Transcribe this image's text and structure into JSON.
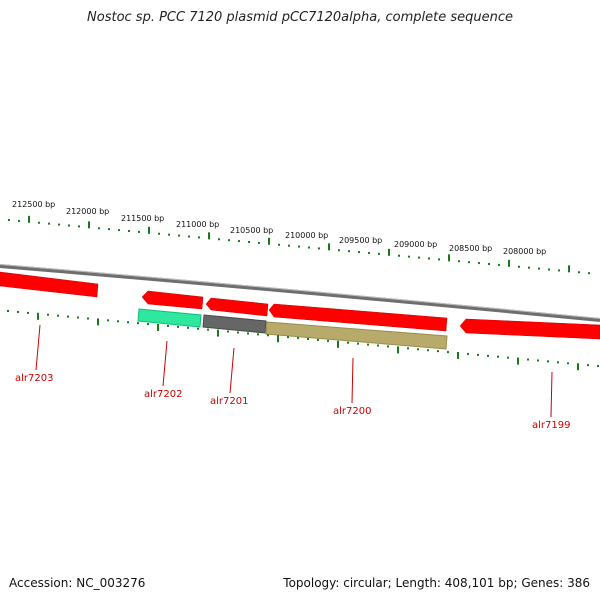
{
  "title": "Nostoc sp. PCC 7120 plasmid pCC7120alpha, complete sequence",
  "footer": {
    "accession": "Accession: NC_003276",
    "topology": "Topology: circular; Length: 408,101 bp; Genes: 386"
  },
  "scale_labels": [
    "212500 bp",
    "212000 bp",
    "211500 bp",
    "211000 bp",
    "210500 bp",
    "210000 bp",
    "209500 bp",
    "209000 bp",
    "208500 bp",
    "208000 bp"
  ],
  "genes": [
    {
      "name": "alr7203",
      "color": "#ff0000"
    },
    {
      "name": "alr7202",
      "color": "#ff0000"
    },
    {
      "name": "alr7201",
      "color": "#ff0000"
    },
    {
      "name": "alr7200",
      "color": "#ff0000"
    },
    {
      "name": "alr7199",
      "color": "#ff0000"
    }
  ],
  "colors": {
    "ticks": "#1a7a1a",
    "backbone": "#7a7a7a",
    "gene": "#ff0000",
    "label": "#cc0000",
    "feature_green": "#2ee8a0",
    "feature_gray": "#666666",
    "feature_olive": "#b8aa6a"
  }
}
